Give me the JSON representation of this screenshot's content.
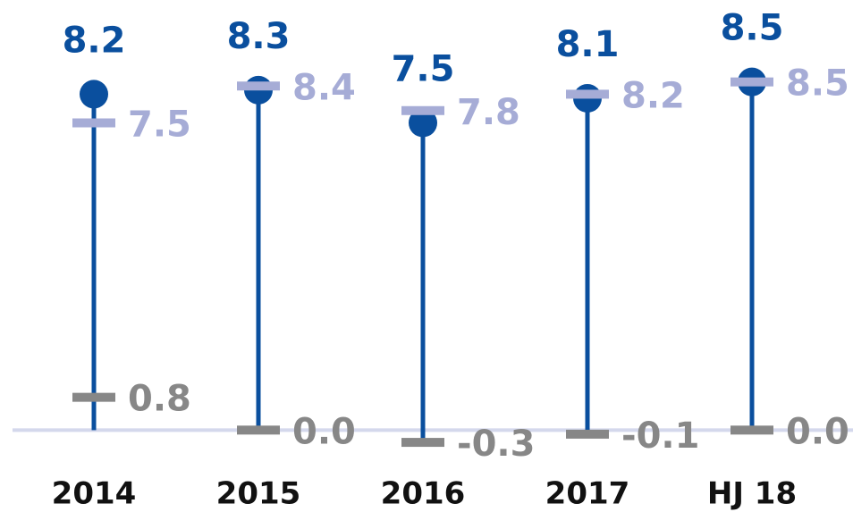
{
  "chart_data": {
    "type": "lollipop",
    "categories": [
      "2014",
      "2015",
      "2016",
      "2017",
      "HJ 18"
    ],
    "series": [
      {
        "color": "#0a4f9e",
        "marker": "dot",
        "values": [
          8.2,
          8.3,
          7.5,
          8.1,
          8.5
        ]
      },
      {
        "color": "#a6acd6",
        "marker": "dash",
        "values": [
          7.5,
          8.4,
          7.8,
          8.2,
          8.5
        ]
      },
      {
        "color": "#878787",
        "marker": "dash",
        "values": [
          0.8,
          0.0,
          -0.3,
          -0.1,
          0.0
        ],
        "value_labels": [
          "0.8",
          "0.0",
          "-0.3",
          "-0.1",
          "0.0"
        ]
      }
    ],
    "ylim": [
      -2,
      10.5
    ]
  }
}
